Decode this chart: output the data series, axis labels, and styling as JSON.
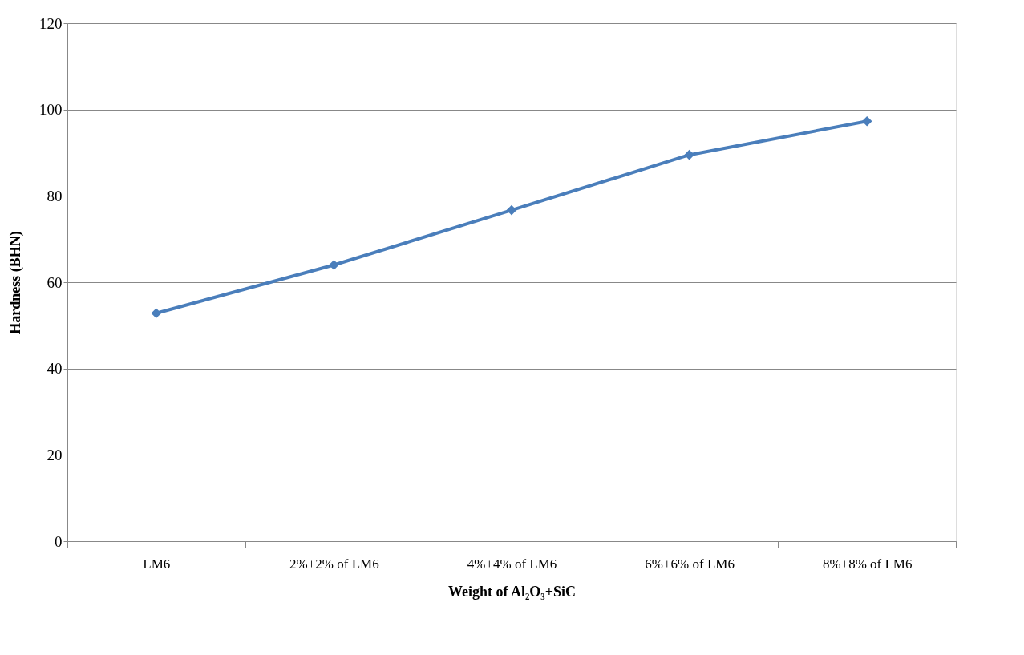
{
  "chart_data": {
    "type": "line",
    "xlabel": "Weight of Al₂O₃+SiC",
    "ylabel": "Hardness (BHN)",
    "categories": [
      "LM6",
      "2%+2% of LM6",
      "4%+4% of LM6",
      "6%+6% of LM6",
      "8%+8% of LM6"
    ],
    "series": [
      {
        "color": "#4a7ebb",
        "values": [
          52.8,
          64.0,
          76.7,
          89.5,
          97.3
        ]
      }
    ],
    "ylim": [
      0,
      120
    ],
    "yticks": [
      0,
      20,
      40,
      60,
      80,
      100,
      120
    ],
    "grid": "y",
    "legend": false,
    "marker": "diamond",
    "line_style": "solid"
  }
}
